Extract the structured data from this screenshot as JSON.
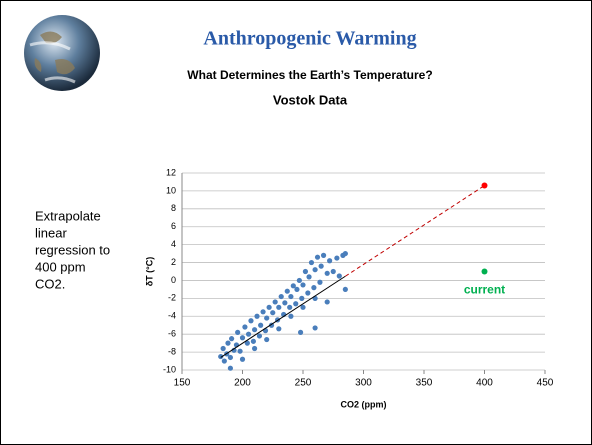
{
  "slide": {
    "title": "Anthropogenic Warming",
    "subtitle": "What Determines the Earth’s Temperature?",
    "heading": "Vostok Data",
    "note": [
      "Extrapolate",
      "linear",
      "regression to",
      "400 ppm",
      "CO2."
    ]
  },
  "chart_data": {
    "type": "scatter",
    "x_label": "CO2 (ppm)",
    "y_label": "δT (°C)",
    "xlim": [
      150,
      450
    ],
    "xticks": [
      150,
      200,
      250,
      300,
      350,
      400,
      450
    ],
    "ylim": [
      -10,
      12
    ],
    "yticks": [
      -10,
      -8,
      -6,
      -4,
      -2,
      0,
      2,
      4,
      6,
      8,
      10,
      12
    ],
    "grid": true,
    "annotation": "current",
    "series": [
      {
        "color": "#4a7ebb",
        "mode": "points",
        "x": [
          182,
          184,
          185,
          187,
          188,
          190,
          191,
          193,
          195,
          196,
          198,
          200,
          202,
          204,
          205,
          207,
          209,
          210,
          212,
          214,
          215,
          217,
          219,
          220,
          222,
          224,
          225,
          227,
          229,
          230,
          232,
          234,
          235,
          237,
          239,
          240,
          242,
          244,
          245,
          247,
          249,
          250,
          252,
          254,
          255,
          257,
          259,
          260,
          262,
          264,
          265,
          267,
          270,
          272,
          275,
          278,
          280,
          283,
          285,
          190,
          200,
          210,
          220,
          230,
          240,
          250,
          260,
          270,
          248,
          260,
          285
        ],
        "values": [
          -8.5,
          -7.6,
          -9.0,
          -8.2,
          -7.0,
          -8.6,
          -6.5,
          -7.8,
          -7.2,
          -5.8,
          -7.9,
          -6.4,
          -5.2,
          -7.0,
          -6.0,
          -4.5,
          -6.8,
          -5.5,
          -4.0,
          -6.2,
          -5.0,
          -3.5,
          -5.6,
          -4.2,
          -3.0,
          -5.0,
          -3.6,
          -2.4,
          -4.4,
          -3.0,
          -1.8,
          -3.8,
          -2.5,
          -1.2,
          -3.0,
          -1.8,
          -0.6,
          -2.6,
          -1.0,
          0.0,
          -2.0,
          -0.5,
          1.0,
          -1.4,
          0.4,
          2.0,
          -0.8,
          1.2,
          2.6,
          -0.2,
          1.6,
          2.8,
          0.8,
          2.2,
          1.0,
          2.5,
          0.5,
          2.8,
          -1.0,
          -9.8,
          -8.8,
          -7.6,
          -6.6,
          -5.4,
          -4.0,
          -3.0,
          -2.0,
          -2.4,
          -5.8,
          -5.3,
          3.0
        ]
      },
      {
        "color": "#000000",
        "mode": "line",
        "x": [
          182,
          285
        ],
        "values": [
          -8.6,
          0.47
        ]
      },
      {
        "color": "#c00000",
        "mode": "line",
        "dash": true,
        "x": [
          285,
          400
        ],
        "values": [
          0.47,
          10.6
        ]
      },
      {
        "color": "#ff0000",
        "mode": "points",
        "x": [
          400
        ],
        "values": [
          10.6
        ]
      },
      {
        "color": "#00b050",
        "mode": "points",
        "x": [
          400
        ],
        "values": [
          1.0
        ]
      }
    ]
  }
}
